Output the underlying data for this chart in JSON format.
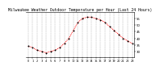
{
  "title": "Milwaukee Weather Outdoor Temperature per Hour (Last 24 Hours)",
  "hours": [
    0,
    1,
    2,
    3,
    4,
    5,
    6,
    7,
    8,
    9,
    10,
    11,
    12,
    13,
    14,
    15,
    16,
    17,
    18,
    19,
    20,
    21,
    22,
    23
  ],
  "temps": [
    34,
    33,
    31,
    30,
    29,
    30,
    31,
    33,
    36,
    40,
    46,
    52,
    55,
    56,
    56,
    55,
    54,
    52,
    49,
    46,
    43,
    40,
    38,
    36
  ],
  "line_color": "#ff0000",
  "dot_color": "#000000",
  "bg_color": "#ffffff",
  "grid_color": "#888888",
  "ylim": [
    26,
    60
  ],
  "yticks": [
    30,
    35,
    40,
    45,
    50,
    55
  ],
  "title_fontsize": 3.5,
  "tick_fontsize": 2.8,
  "linewidth": 0.7,
  "markersize": 1.0
}
